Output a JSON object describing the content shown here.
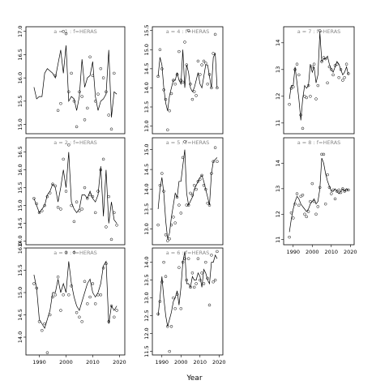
{
  "figure": {
    "xlabel": "Year"
  },
  "chart_data": [
    {
      "type": "line",
      "title": "a = 1 : f=HERAS",
      "xlim": [
        1985,
        2022
      ],
      "ylim": [
        14.8,
        17.1
      ],
      "yticks": [
        15.0,
        15.5,
        16.0,
        16.5,
        17.0
      ],
      "xticks": [],
      "line": {
        "x": [
          1988,
          1989,
          1990,
          1991,
          1992,
          1993,
          1994,
          1995,
          1996,
          1997,
          1998,
          1999,
          2000,
          2001,
          2002,
          2003,
          2004,
          2005,
          2006,
          2007,
          2008,
          2009,
          2010,
          2011,
          2012,
          2013,
          2014,
          2015,
          2016,
          2017,
          2018,
          2019
        ],
        "y": [
          15.8,
          15.55,
          15.6,
          15.6,
          16.1,
          16.2,
          16.15,
          16.1,
          16.0,
          16.3,
          16.6,
          16.1,
          16.7,
          15.5,
          15.6,
          15.55,
          15.3,
          15.6,
          16.4,
          15.8,
          16.0,
          16.05,
          16.35,
          15.6,
          15.3,
          15.5,
          15.55,
          15.65,
          16.6,
          15.15,
          15.7,
          15.65
        ]
      },
      "points": {
        "x": [
          1996,
          1997,
          1998,
          1999,
          2000,
          2001,
          2002,
          2003,
          2004,
          2005,
          2006,
          2007,
          2008,
          2009,
          2010,
          2011,
          2012,
          2013,
          2014,
          2015,
          2016,
          2017,
          2018
        ],
        "y": [
          16.05,
          15.3,
          15.45,
          17.0,
          16.95,
          15.7,
          16.1,
          15.5,
          14.95,
          15.7,
          15.6,
          15.1,
          15.35,
          16.45,
          16.05,
          15.5,
          15.65,
          16.2,
          16.0,
          15.7,
          15.2,
          14.9,
          16.1
        ]
      }
    },
    {
      "type": "line",
      "title": "a = 2 : f=HERAS",
      "xlim": [
        1985,
        2022
      ],
      "ylim": [
        13.9,
        16.9
      ],
      "yticks": [
        14.0,
        14.5,
        15.0,
        15.5,
        16.0,
        16.5
      ],
      "xticks": [],
      "line": {
        "x": [
          1988,
          1989,
          1990,
          1991,
          1992,
          1993,
          1994,
          1995,
          1996,
          1997,
          1998,
          1999,
          2000,
          2001,
          2002,
          2003,
          2004,
          2005,
          2006,
          2007,
          2008,
          2009,
          2010,
          2011,
          2012,
          2013,
          2014,
          2015,
          2016,
          2017,
          2018,
          2019
        ],
        "y": [
          15.2,
          15.0,
          14.8,
          14.9,
          15.0,
          15.3,
          15.4,
          15.6,
          15.5,
          15.1,
          15.5,
          16.0,
          15.5,
          16.5,
          15.1,
          14.9,
          14.8,
          14.9,
          15.3,
          15.3,
          15.2,
          15.4,
          15.2,
          15.1,
          15.3,
          16.1,
          14.7,
          16.0,
          14.5,
          15.1,
          14.6,
          14.5
        ]
      },
      "points": {
        "x": [
          1988,
          1989,
          1990,
          1991,
          1992,
          1993,
          1994,
          1995,
          1996,
          1997,
          1998,
          1999,
          2000,
          2001,
          2002,
          2003,
          2004,
          2005,
          2006,
          2007,
          2008,
          2009,
          2010,
          2011,
          2012,
          2013,
          2014,
          2015,
          2016,
          2017,
          2018,
          2019
        ],
        "y": [
          15.2,
          15.05,
          14.8,
          14.85,
          15.0,
          15.25,
          15.35,
          15.6,
          15.55,
          14.95,
          14.9,
          16.3,
          15.4,
          16.7,
          15.0,
          14.55,
          15.1,
          14.85,
          14.9,
          15.5,
          15.2,
          15.3,
          15.25,
          14.8,
          15.4,
          16.0,
          16.3,
          14.4,
          15.25,
          14.05,
          14.8,
          14.45
        ]
      }
    },
    {
      "type": "line",
      "title": "a = 3 : f=HERAS",
      "xlim": [
        1985,
        2022
      ],
      "ylim": [
        13.6,
        16.0
      ],
      "yticks": [
        14.0,
        14.5,
        15.0,
        15.5,
        16.0
      ],
      "xticks": [
        1990,
        2000,
        2010,
        2020
      ],
      "line": {
        "x": [
          1988,
          1989,
          1990,
          1991,
          1992,
          1993,
          1994,
          1995,
          1996,
          1997,
          1998,
          1999,
          2000,
          2001,
          2002,
          2003,
          2004,
          2005,
          2006,
          2007,
          2008,
          2009,
          2010,
          2011,
          2012,
          2013,
          2014,
          2015,
          2016,
          2017,
          2018,
          2019
        ],
        "y": [
          15.4,
          15.1,
          14.4,
          14.3,
          14.2,
          14.4,
          14.6,
          15.0,
          15.0,
          15.3,
          15.0,
          15.2,
          15.0,
          15.7,
          15.2,
          14.9,
          14.7,
          14.6,
          14.8,
          15.0,
          15.2,
          15.3,
          15.0,
          14.9,
          15.0,
          15.2,
          15.6,
          15.7,
          14.3,
          14.7,
          14.6,
          14.7
        ]
      },
      "points": {
        "x": [
          1988,
          1989,
          1990,
          1991,
          1992,
          1993,
          1994,
          1995,
          1996,
          1997,
          1998,
          1999,
          2000,
          2001,
          2002,
          2003,
          2004,
          2005,
          2006,
          2007,
          2008,
          2009,
          2010,
          2011,
          2012,
          2013,
          2014,
          2015,
          2016,
          2017,
          2018,
          2019
        ],
        "y": [
          15.2,
          15.1,
          14.35,
          14.15,
          14.3,
          13.65,
          14.5,
          14.9,
          14.95,
          15.35,
          14.6,
          14.95,
          15.9,
          14.95,
          15.15,
          15.9,
          14.55,
          14.45,
          14.35,
          15.25,
          14.75,
          14.9,
          15.2,
          14.75,
          14.95,
          14.95,
          15.55,
          15.65,
          14.35,
          14.7,
          14.45,
          14.6
        ]
      }
    },
    {
      "type": "line",
      "title": "a = 4 : f=HERAS",
      "xlim": [
        1985,
        2022
      ],
      "ylim": [
        12.8,
        15.6
      ],
      "yticks": [
        13.0,
        13.5,
        14.0,
        14.5,
        15.0,
        15.5
      ],
      "xticks": [],
      "line": {
        "x": [
          1988,
          1989,
          1990,
          1991,
          1992,
          1993,
          1994,
          1995,
          1996,
          1997,
          1998,
          1999,
          2000,
          2001,
          2002,
          2003,
          2004,
          2005,
          2006,
          2007,
          2008,
          2009,
          2010,
          2011,
          2012,
          2013,
          2014,
          2015,
          2016,
          2017,
          2018,
          2019
        ],
        "y": [
          14.3,
          14.8,
          14.6,
          14.0,
          13.6,
          13.4,
          13.8,
          14.0,
          14.2,
          14.2,
          14.4,
          14.2,
          14.1,
          15.0,
          14.0,
          14.6,
          14.4,
          14.0,
          13.9,
          14.0,
          14.2,
          14.4,
          14.1,
          14.0,
          14.3,
          14.6,
          14.6,
          14.3,
          14.0,
          14.8,
          14.9,
          14.0
        ]
      },
      "points": {
        "x": [
          1988,
          1989,
          1990,
          1991,
          1992,
          1993,
          1994,
          1995,
          1996,
          1997,
          1998,
          1999,
          2000,
          2001,
          2002,
          2003,
          2004,
          2005,
          2006,
          2007,
          2008,
          2009,
          2010,
          2011,
          2012,
          2013,
          2014,
          2015,
          2016,
          2017,
          2018,
          2019
        ],
        "y": [
          14.3,
          15.0,
          14.5,
          13.95,
          13.7,
          12.9,
          13.4,
          13.85,
          14.2,
          14.1,
          14.35,
          14.95,
          14.2,
          14.15,
          15.2,
          14.6,
          15.5,
          14.1,
          13.7,
          13.9,
          13.8,
          14.7,
          14.35,
          14.6,
          14.7,
          14.65,
          14.1,
          14.35,
          14.0,
          14.9,
          15.4,
          14.0
        ]
      }
    },
    {
      "type": "line",
      "title": "a = 5 : f=HERAS",
      "xlim": [
        1985,
        2022
      ],
      "ylim": [
        12.6,
        15.3
      ],
      "yticks": [
        13.0,
        13.5,
        14.0,
        14.5,
        15.0
      ],
      "xticks": [],
      "line": {
        "x": [
          1988,
          1989,
          1990,
          1991,
          1992,
          1993,
          1994,
          1995,
          1996,
          1997,
          1998,
          1999,
          2000,
          2001,
          2002,
          2003,
          2004,
          2005,
          2006,
          2007,
          2008,
          2009,
          2010,
          2011,
          2012,
          2013,
          2014,
          2015,
          2016,
          2017,
          2018,
          2019
        ],
        "y": [
          13.5,
          14.0,
          14.3,
          13.9,
          13.2,
          12.75,
          12.9,
          13.3,
          13.6,
          13.9,
          13.8,
          14.2,
          14.2,
          14.6,
          15.0,
          13.9,
          13.6,
          13.7,
          13.8,
          14.0,
          14.1,
          14.2,
          14.3,
          14.35,
          14.2,
          14.0,
          13.8,
          13.6,
          14.4,
          14.7,
          14.75,
          14.8
        ]
      },
      "points": {
        "x": [
          1988,
          1989,
          1990,
          1991,
          1992,
          1993,
          1994,
          1995,
          1996,
          1997,
          1998,
          1999,
          2000,
          2001,
          2002,
          2003,
          2004,
          2005,
          2006,
          2007,
          2008,
          2009,
          2010,
          2011,
          2012,
          2013,
          2014,
          2015,
          2016,
          2017,
          2018,
          2019
        ],
        "y": [
          13.1,
          14.1,
          14.4,
          13.95,
          12.85,
          12.7,
          12.75,
          13.1,
          13.3,
          13.15,
          13.8,
          13.6,
          13.4,
          14.8,
          15.2,
          13.6,
          13.6,
          13.9,
          13.85,
          14.1,
          14.0,
          14.2,
          14.25,
          14.35,
          14.1,
          14.0,
          13.65,
          13.6,
          14.4,
          14.7,
          15.05,
          14.7
        ]
      }
    },
    {
      "type": "line",
      "title": "a = 6 : f=HERAS",
      "xlim": [
        1985,
        2022
      ],
      "ylim": [
        11.4,
        14.4
      ],
      "yticks": [
        11.5,
        12.0,
        12.5,
        13.0,
        13.5,
        14.0
      ],
      "xticks": [
        1990,
        2000,
        2010,
        2020
      ],
      "line": {
        "x": [
          1988,
          1989,
          1990,
          1991,
          1992,
          1993,
          1994,
          1995,
          1996,
          1997,
          1998,
          1999,
          2000,
          2001,
          2002,
          2003,
          2004,
          2005,
          2006,
          2007,
          2008,
          2009,
          2010,
          2011,
          2012,
          2013,
          2014,
          2015,
          2016,
          2017,
          2018,
          2019
        ],
        "y": [
          12.5,
          13.0,
          13.6,
          13.0,
          12.5,
          12.2,
          12.4,
          12.6,
          12.9,
          13.0,
          13.2,
          12.8,
          13.3,
          14.0,
          14.3,
          13.4,
          13.4,
          13.3,
          13.6,
          13.5,
          13.5,
          13.7,
          13.6,
          13.3,
          13.8,
          13.7,
          13.5,
          13.4,
          14.0,
          14.0,
          14.2,
          14.1
        ]
      },
      "points": {
        "x": [
          1988,
          1989,
          1990,
          1991,
          1992,
          1993,
          1994,
          1995,
          1996,
          1997,
          1998,
          1999,
          2000,
          2001,
          2002,
          2003,
          2004,
          2005,
          2006,
          2007,
          2008,
          2009,
          2010,
          2011,
          2012,
          2013,
          2014,
          2015,
          2016,
          2017,
          2018,
          2019
        ],
        "y": [
          12.55,
          12.9,
          13.45,
          14.0,
          13.6,
          12.2,
          11.5,
          12.2,
          13.0,
          12.7,
          13.1,
          13.85,
          12.7,
          14.0,
          14.1,
          13.5,
          14.1,
          13.3,
          13.7,
          13.3,
          13.4,
          14.1,
          13.5,
          13.7,
          13.4,
          14.0,
          13.55,
          12.8,
          14.2,
          13.45,
          13.5,
          14.3
        ]
      }
    },
    {
      "type": "line",
      "title": "a = 7 : f=HERAS",
      "xlim": [
        1985,
        2022
      ],
      "ylim": [
        10.6,
        14.6
      ],
      "yticks": [
        11,
        12,
        13,
        14
      ],
      "xticks": [],
      "line": {
        "x": [
          1988,
          1989,
          1990,
          1991,
          1992,
          1993,
          1994,
          1995,
          1996,
          1997,
          1998,
          1999,
          2000,
          2001,
          2002,
          2003,
          2004,
          2005,
          2006,
          2007,
          2008,
          2009,
          2010,
          2011,
          2012,
          2013,
          2014,
          2015,
          2016,
          2017,
          2018,
          2019
        ],
        "y": [
          11.9,
          12.4,
          12.4,
          13.1,
          12.5,
          11.9,
          11.1,
          11.9,
          12.4,
          12.3,
          12.4,
          13.2,
          12.9,
          13.1,
          12.5,
          12.8,
          14.4,
          13.3,
          13.4,
          13.4,
          13.5,
          13.2,
          13.0,
          12.9,
          13.1,
          13.3,
          13.2,
          13.0,
          12.8,
          12.9,
          13.1,
          12.8
        ]
      },
      "points": {
        "x": [
          1988,
          1989,
          1990,
          1991,
          1992,
          1993,
          1994,
          1995,
          1996,
          1997,
          1998,
          1999,
          2000,
          2001,
          2002,
          2003,
          2004,
          2005,
          2006,
          2007,
          2008,
          2009,
          2010,
          2011,
          2012,
          2013,
          2014,
          2015,
          2016,
          2017,
          2018,
          2019
        ],
        "y": [
          11.7,
          12.3,
          12.35,
          13.0,
          13.2,
          12.8,
          11.3,
          10.8,
          12.0,
          11.95,
          12.4,
          12.0,
          13.1,
          13.2,
          11.9,
          12.4,
          14.45,
          13.3,
          13.45,
          13.4,
          12.5,
          13.1,
          13.0,
          12.8,
          13.15,
          13.2,
          12.7,
          13.0,
          12.6,
          12.7,
          13.2,
          12.85
        ]
      }
    },
    {
      "type": "line",
      "title": "a = 8 : f=HERAS",
      "xlim": [
        1985,
        2022
      ],
      "ylim": [
        10.8,
        15.0
      ],
      "yticks": [
        11,
        12,
        13,
        14
      ],
      "xticks": [
        1990,
        2000,
        2010,
        2020
      ],
      "line": {
        "x": [
          1988,
          1989,
          1990,
          1991,
          1992,
          1993,
          1994,
          1995,
          1996,
          1997,
          1998,
          1999,
          2000,
          2001,
          2002,
          2003,
          2004,
          2005,
          2006,
          2007,
          2008,
          2009,
          2010,
          2011,
          2012,
          2013,
          2014,
          2015,
          2016,
          2017,
          2018,
          2019
        ],
        "y": [
          11.3,
          11.8,
          12.2,
          12.5,
          12.7,
          12.6,
          12.4,
          12.3,
          12.2,
          12.1,
          12.2,
          12.4,
          12.5,
          12.6,
          12.4,
          12.5,
          13.0,
          14.2,
          14.0,
          13.6,
          13.3,
          13.1,
          12.9,
          12.9,
          13.0,
          12.9,
          12.8,
          12.9,
          13.0,
          12.9,
          13.0,
          12.95
        ]
      },
      "points": {
        "x": [
          1988,
          1989,
          1990,
          1991,
          1992,
          1993,
          1994,
          1995,
          1996,
          1997,
          1998,
          1999,
          2000,
          2001,
          2002,
          2003,
          2004,
          2005,
          2006,
          2007,
          2008,
          2009,
          2010,
          2011,
          2012,
          2013,
          2014,
          2015,
          2016,
          2017,
          2018,
          2019
        ],
        "y": [
          11.1,
          12.05,
          11.85,
          12.4,
          12.8,
          12.35,
          12.7,
          12.75,
          12.0,
          11.9,
          12.1,
          12.5,
          13.2,
          12.5,
          12.0,
          12.3,
          13.05,
          14.35,
          14.35,
          12.4,
          13.55,
          13.05,
          12.8,
          12.95,
          12.6,
          12.9,
          12.95,
          12.85,
          13.0,
          12.9,
          12.95,
          12.95
        ]
      }
    }
  ]
}
